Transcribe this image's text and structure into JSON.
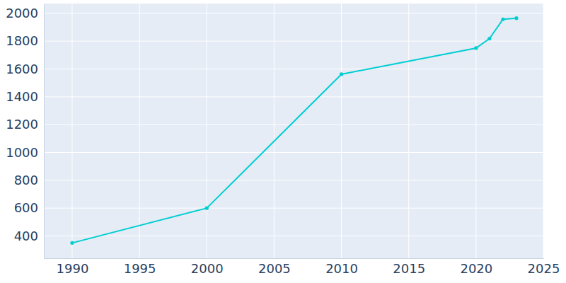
{
  "chart_data": {
    "type": "line",
    "x": [
      1990,
      2000,
      2010,
      2020,
      2021,
      2022,
      2023
    ],
    "values": [
      350,
      600,
      1562,
      1750,
      1818,
      1957,
      1965
    ],
    "color": "#00ced1",
    "marker": "circle",
    "xlim": [
      1987.9,
      2025
    ],
    "xticks": [
      1990,
      1995,
      2000,
      2005,
      2010,
      2015,
      2020,
      2025
    ],
    "ylim": [
      240,
      2070
    ],
    "yticks": [
      400,
      600,
      800,
      1000,
      1200,
      1400,
      1600,
      1800,
      2000
    ],
    "grid": true
  }
}
